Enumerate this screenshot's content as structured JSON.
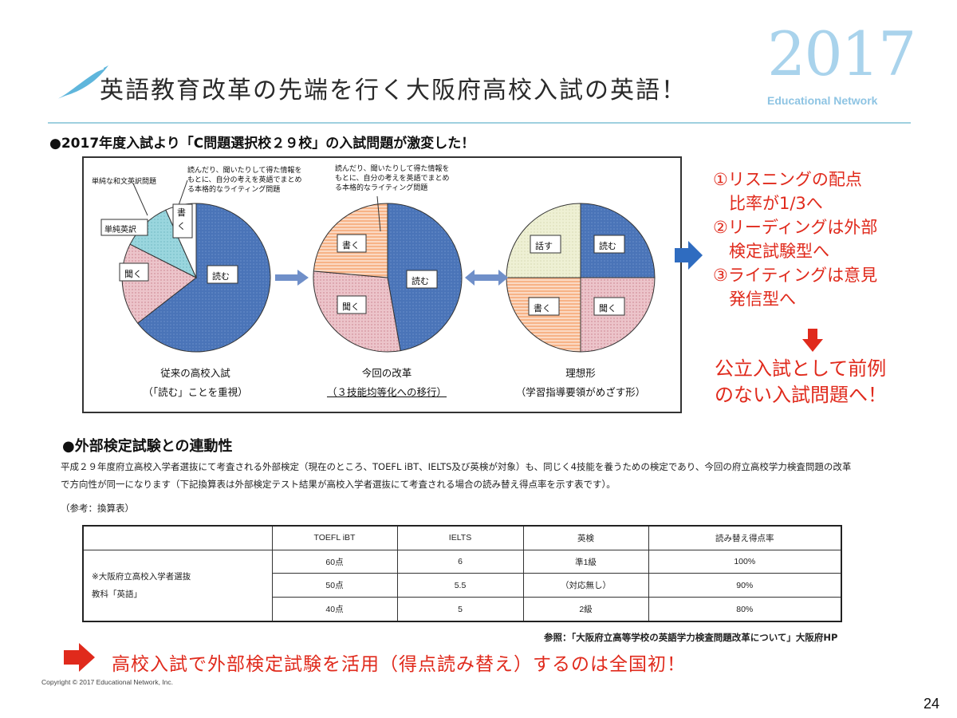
{
  "header": {
    "title": "英語教育改革の先端を行く大阪府高校入試の英語！",
    "year": "2017",
    "brand": "Educational Network"
  },
  "section1": {
    "heading": "●2017年度入試より「C問題選択校２９校」の入試問題が激変した！"
  },
  "figure": {
    "pie1": {
      "labels": {
        "yomu": "読む",
        "kiku": "聞く",
        "tanjun": "単純英訳",
        "kaku": "書く"
      },
      "annotations": {
        "wabun": "単純な和文英訳問題",
        "writing": [
          "読んだり、聞いたりして得た情報を",
          "もとに、自分の考えを英語でまとめ",
          "る本格的なライティング問題"
        ]
      },
      "caption": [
        "従来の高校入試",
        "（「読む」ことを重視）"
      ]
    },
    "pie2": {
      "labels": {
        "yomu": "読む",
        "kiku": "聞く",
        "kaku": "書く"
      },
      "annotation": [
        "読んだり、聞いたりして得た情報を",
        "もとに、自分の考えを英語でまとめ",
        "る本格的なライティング問題"
      ],
      "caption": [
        "今回の改革",
        "（３技能均等化への移行）"
      ]
    },
    "pie3": {
      "labels": {
        "hanasu": "話す",
        "yomu": "読む",
        "kaku": "書く",
        "kiku": "聞く"
      },
      "caption": [
        "理想形",
        "（学習指導要領がめざす形）"
      ]
    },
    "colors": {
      "yomu": "#4a74b8",
      "kiku": "#e8b8bf",
      "kaku": "#f5a06a",
      "hanasu": "#e9eccc",
      "tanjun": "#8fd0d8"
    }
  },
  "points": {
    "items": [
      [
        "①リスニングの配点",
        "比率が1/3へ"
      ],
      [
        "②リーディングは外部",
        "検定試験型へ"
      ],
      [
        "③ライティングは意見",
        "発信型へ"
      ]
    ],
    "conclusion": [
      "公立入試として前例",
      "のない入試問題へ！"
    ]
  },
  "section2": {
    "heading": "●外部検定試験との連動性",
    "para": "平成２９年度府立高校入学者選抜にて考査される外部検定（現在のところ、TOEFL iBT、IELTS及び英検が対象）も、同じく4技能を養うための検定であり、今回の府立高校学力検査問題の改革で方向性が同一になります（下記換算表は外部検定テスト結果が高校入学者選抜にて考査される場合の読み替え得点率を示す表です）。",
    "ref": "（参考：換算表）"
  },
  "table": {
    "headers": [
      "TOEFL iBT",
      "IELTS",
      "英検",
      "読み替え得点率"
    ],
    "row_label": [
      "※大阪府立高校入学者選抜",
      "教科「英語」"
    ],
    "rows": [
      [
        "60点",
        "6",
        "準1級",
        "100%"
      ],
      [
        "50点",
        "5.5",
        "（対応無し）",
        "90%"
      ],
      [
        "40点",
        "5",
        "2級",
        "80%"
      ]
    ]
  },
  "source": "参照：「大阪府立高等学校の英語学力検査問題改革について」大阪府HP",
  "footer_statement": "高校入試で外部検定試験を活用（得点読み替え）するのは全国初！",
  "copyright": "Copyright ©  2017  Educational Network, Inc.",
  "page_number": "24"
}
